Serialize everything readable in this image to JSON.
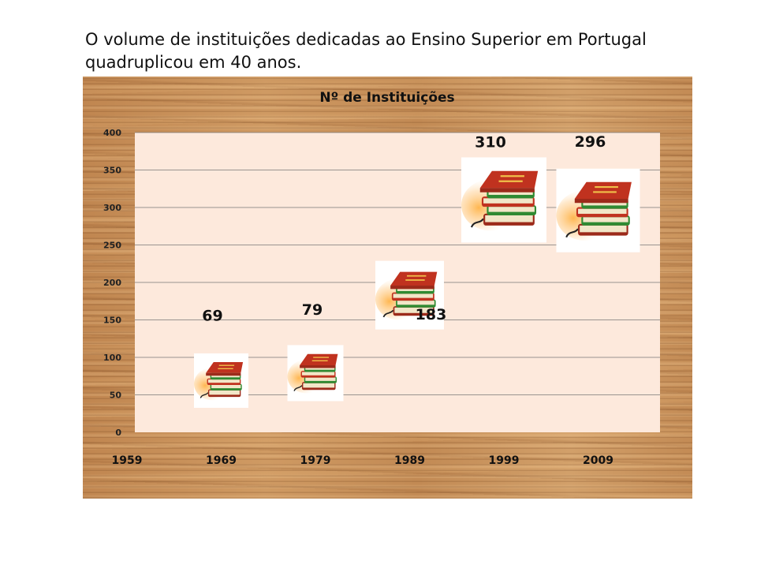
{
  "slide": {
    "title_line1": "O volume de instituições dedicadas ao Ensino Superior em Portugal",
    "title_line2": "quadruplicou em 40 anos."
  },
  "colors": {
    "plot_background": "#fde9dc",
    "gridline": "#777777",
    "book_red": "#c0321f",
    "book_green": "#2f8a32",
    "book_cover": "#9c2a1a",
    "pages": "#f2e6c8"
  },
  "icons": {
    "marker": "book-stack-icon"
  },
  "chart_data": {
    "type": "scatter",
    "title": "Nº de Instituições",
    "xlabel": "",
    "ylabel": "",
    "x_ticks": [
      "1959",
      "1969",
      "1979",
      "1989",
      "1999",
      "2009"
    ],
    "y_ticks": [
      "0",
      "50",
      "100",
      "150",
      "200",
      "250",
      "300",
      "350",
      "400"
    ],
    "ylim": [
      0,
      400
    ],
    "grid": "horizontal",
    "legend": "none",
    "marker": "book-stack-icon",
    "points": [
      {
        "x": "1969",
        "y": 69,
        "label": "69"
      },
      {
        "x": "1979",
        "y": 79,
        "label": "79"
      },
      {
        "x": "1989",
        "y": 183,
        "label": "183"
      },
      {
        "x": "1999",
        "y": 310,
        "label": "310"
      },
      {
        "x": "2009",
        "y": 296,
        "label": "296"
      }
    ]
  }
}
